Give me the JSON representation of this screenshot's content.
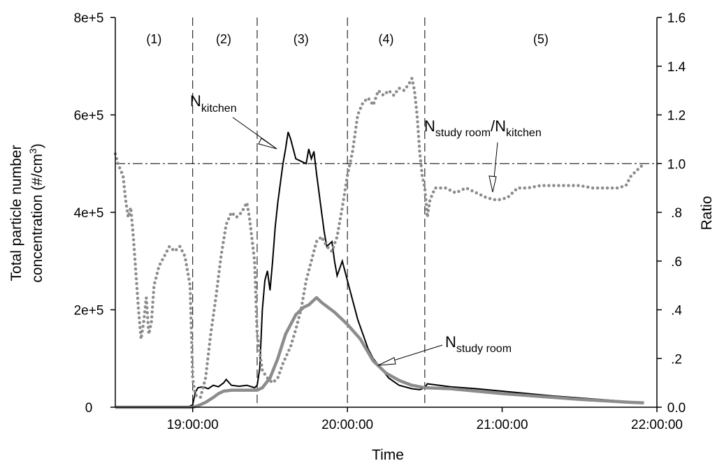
{
  "chart_data": {
    "type": "line",
    "xlabel": "Time",
    "ylabel_left_line1": "Total particle number",
    "ylabel_left_line2": "concentration (#/cm",
    "ylabel_left_sup": "3",
    "ylabel_left_end": ")",
    "ylabel_right": "Ratio",
    "xlim": [
      "18:30:00",
      "22:00:00"
    ],
    "ylim_left": [
      0,
      800000
    ],
    "ylim_right": [
      0.0,
      1.6
    ],
    "x_ticks": [
      "19:00:00",
      "20:00:00",
      "21:00:00",
      "22:00:00"
    ],
    "y_left_ticks": [
      {
        "value": 0,
        "label": "0"
      },
      {
        "value": 200000,
        "label": "2e+5"
      },
      {
        "value": 400000,
        "label": "4e+5"
      },
      {
        "value": 600000,
        "label": "6e+5"
      },
      {
        "value": 800000,
        "label": "8e+5"
      }
    ],
    "y_right_ticks": [
      {
        "value": 0.0,
        "label": "0.0"
      },
      {
        "value": 0.2,
        "label": ".2"
      },
      {
        "value": 0.4,
        "label": ".4"
      },
      {
        "value": 0.6,
        "label": ".6"
      },
      {
        "value": 0.8,
        "label": ".8"
      },
      {
        "value": 1.0,
        "label": "1.0"
      },
      {
        "value": 1.2,
        "label": "1.2"
      },
      {
        "value": 1.4,
        "label": "1.4"
      },
      {
        "value": 1.6,
        "label": "1.6"
      }
    ],
    "region_boundaries": [
      "19:00:00",
      "19:25:00",
      "20:00:00",
      "20:30:00"
    ],
    "regions": [
      {
        "label": "(1)",
        "center": "18:45:00"
      },
      {
        "label": "(2)",
        "center": "19:12:00"
      },
      {
        "label": "(3)",
        "center": "19:42:00"
      },
      {
        "label": "(4)",
        "center": "20:15:00"
      },
      {
        "label": "(5)",
        "center": "21:15:00"
      }
    ],
    "reference_line": {
      "axis": "right",
      "value": 1.0
    },
    "annotations": [
      {
        "main": "N",
        "sub": "kitchen"
      },
      {
        "main": "N",
        "sub": "study room",
        "mid": "/N",
        "sub2": "kitchen"
      },
      {
        "main": "N",
        "sub": "study room"
      }
    ],
    "series": [
      {
        "axis": "left",
        "style": "solid-black",
        "points": [
          [
            "18:30:00",
            0
          ],
          [
            "18:58:00",
            0
          ],
          [
            "19:00:00",
            5000
          ],
          [
            "19:01:00",
            30000
          ],
          [
            "19:02:00",
            40000
          ],
          [
            "19:04:00",
            42000
          ],
          [
            "19:06:00",
            38000
          ],
          [
            "19:08:00",
            45000
          ],
          [
            "19:10:00",
            42000
          ],
          [
            "19:12:00",
            50000
          ],
          [
            "19:13:00",
            57000
          ],
          [
            "19:15:00",
            45000
          ],
          [
            "19:18:00",
            43000
          ],
          [
            "19:21:00",
            45000
          ],
          [
            "19:24:00",
            40000
          ],
          [
            "19:25:00",
            45000
          ],
          [
            "19:26:00",
            80000
          ],
          [
            "19:27:00",
            200000
          ],
          [
            "19:28:00",
            260000
          ],
          [
            "19:29:00",
            280000
          ],
          [
            "19:30:00",
            240000
          ],
          [
            "19:31:00",
            300000
          ],
          [
            "19:32:00",
            370000
          ],
          [
            "19:33:00",
            420000
          ],
          [
            "19:34:00",
            460000
          ],
          [
            "19:35:00",
            500000
          ],
          [
            "19:36:00",
            530000
          ],
          [
            "19:37:00",
            565000
          ],
          [
            "19:38:00",
            550000
          ],
          [
            "19:39:00",
            530000
          ],
          [
            "19:40:00",
            510000
          ],
          [
            "19:42:00",
            505000
          ],
          [
            "19:44:00",
            500000
          ],
          [
            "19:45:00",
            530000
          ],
          [
            "19:46:00",
            510000
          ],
          [
            "19:47:00",
            525000
          ],
          [
            "19:48:00",
            480000
          ],
          [
            "19:50:00",
            400000
          ],
          [
            "19:51:00",
            360000
          ],
          [
            "19:52:00",
            330000
          ],
          [
            "19:54:00",
            340000
          ],
          [
            "19:55:00",
            300000
          ],
          [
            "19:56:00",
            270000
          ],
          [
            "19:58:00",
            300000
          ],
          [
            "20:00:00",
            260000
          ],
          [
            "20:02:00",
            220000
          ],
          [
            "20:04:00",
            180000
          ],
          [
            "20:06:00",
            150000
          ],
          [
            "20:08:00",
            120000
          ],
          [
            "20:10:00",
            100000
          ],
          [
            "20:13:00",
            80000
          ],
          [
            "20:16:00",
            60000
          ],
          [
            "20:20:00",
            45000
          ],
          [
            "20:25:00",
            38000
          ],
          [
            "20:28:00",
            36000
          ],
          [
            "20:30:00",
            40000
          ],
          [
            "20:31:00",
            48000
          ],
          [
            "20:40:00",
            42000
          ],
          [
            "20:50:00",
            38000
          ],
          [
            "21:00:00",
            33000
          ],
          [
            "21:10:00",
            28000
          ],
          [
            "21:20:00",
            23000
          ],
          [
            "21:30:00",
            19000
          ],
          [
            "21:40:00",
            15000
          ],
          [
            "21:50:00",
            11000
          ],
          [
            "21:55:00",
            10000
          ]
        ]
      },
      {
        "axis": "left",
        "style": "solid-gray",
        "points": [
          [
            "18:30:00",
            0
          ],
          [
            "19:00:00",
            0
          ],
          [
            "19:02:00",
            3000
          ],
          [
            "19:05:00",
            10000
          ],
          [
            "19:08:00",
            20000
          ],
          [
            "19:10:00",
            28000
          ],
          [
            "19:12:00",
            33000
          ],
          [
            "19:15:00",
            35000
          ],
          [
            "19:20:00",
            35000
          ],
          [
            "19:25:00",
            35000
          ],
          [
            "19:27:00",
            40000
          ],
          [
            "19:30:00",
            60000
          ],
          [
            "19:33:00",
            100000
          ],
          [
            "19:36:00",
            150000
          ],
          [
            "19:40:00",
            190000
          ],
          [
            "19:43:00",
            205000
          ],
          [
            "19:45:00",
            210000
          ],
          [
            "19:48:00",
            225000
          ],
          [
            "19:50:00",
            215000
          ],
          [
            "19:55:00",
            195000
          ],
          [
            "20:00:00",
            170000
          ],
          [
            "20:05:00",
            140000
          ],
          [
            "20:10:00",
            95000
          ],
          [
            "20:15:00",
            70000
          ],
          [
            "20:20:00",
            55000
          ],
          [
            "20:25:00",
            45000
          ],
          [
            "20:30:00",
            40000
          ],
          [
            "20:40:00",
            38000
          ],
          [
            "20:50:00",
            33000
          ],
          [
            "21:00:00",
            28000
          ],
          [
            "21:10:00",
            24000
          ],
          [
            "21:20:00",
            20000
          ],
          [
            "21:30:00",
            16000
          ],
          [
            "21:40:00",
            13000
          ],
          [
            "21:50:00",
            10000
          ],
          [
            "21:55:00",
            9000
          ]
        ]
      },
      {
        "axis": "right",
        "style": "dotted-gray",
        "points": [
          [
            "18:30:00",
            1.04
          ],
          [
            "18:31:00",
            1.0
          ],
          [
            "18:33:00",
            0.95
          ],
          [
            "18:34:00",
            0.85
          ],
          [
            "18:35:00",
            0.78
          ],
          [
            "18:36:00",
            0.82
          ],
          [
            "18:37:00",
            0.7
          ],
          [
            "18:38:00",
            0.55
          ],
          [
            "18:39:00",
            0.4
          ],
          [
            "18:40:00",
            0.28
          ],
          [
            "18:41:00",
            0.35
          ],
          [
            "18:42:00",
            0.45
          ],
          [
            "18:43:00",
            0.3
          ],
          [
            "18:44:00",
            0.35
          ],
          [
            "18:45:00",
            0.5
          ],
          [
            "18:47:00",
            0.58
          ],
          [
            "18:49:00",
            0.62
          ],
          [
            "18:51:00",
            0.66
          ],
          [
            "18:53:00",
            0.64
          ],
          [
            "18:55:00",
            0.66
          ],
          [
            "18:57:00",
            0.62
          ],
          [
            "18:59:00",
            0.5
          ],
          [
            "19:00:00",
            0.12
          ],
          [
            "19:01:00",
            0.05
          ],
          [
            "19:03:00",
            0.04
          ],
          [
            "19:05:00",
            0.12
          ],
          [
            "19:07:00",
            0.3
          ],
          [
            "19:09:00",
            0.45
          ],
          [
            "19:11:00",
            0.62
          ],
          [
            "19:13:00",
            0.75
          ],
          [
            "19:15:00",
            0.8
          ],
          [
            "19:17:00",
            0.78
          ],
          [
            "19:19:00",
            0.8
          ],
          [
            "19:21:00",
            0.84
          ],
          [
            "19:22:00",
            0.78
          ],
          [
            "19:24:00",
            0.6
          ],
          [
            "19:25:00",
            0.3
          ],
          [
            "19:27:00",
            0.15
          ],
          [
            "19:29:00",
            0.12
          ],
          [
            "19:31:00",
            0.1
          ],
          [
            "19:33:00",
            0.12
          ],
          [
            "19:35:00",
            0.18
          ],
          [
            "19:38:00",
            0.25
          ],
          [
            "19:40:00",
            0.32
          ],
          [
            "19:42:00",
            0.4
          ],
          [
            "19:44:00",
            0.52
          ],
          [
            "19:46:00",
            0.6
          ],
          [
            "19:48:00",
            0.68
          ],
          [
            "19:50:00",
            0.7
          ],
          [
            "19:52:00",
            0.66
          ],
          [
            "19:54:00",
            0.64
          ],
          [
            "19:56:00",
            0.7
          ],
          [
            "19:58:00",
            0.82
          ],
          [
            "20:00:00",
            0.95
          ],
          [
            "20:02:00",
            1.05
          ],
          [
            "20:04:00",
            1.2
          ],
          [
            "20:06:00",
            1.25
          ],
          [
            "20:08:00",
            1.27
          ],
          [
            "20:10:00",
            1.24
          ],
          [
            "20:12:00",
            1.3
          ],
          [
            "20:14:00",
            1.28
          ],
          [
            "20:16:00",
            1.3
          ],
          [
            "20:18:00",
            1.28
          ],
          [
            "20:20:00",
            1.31
          ],
          [
            "20:22:00",
            1.3
          ],
          [
            "20:24:00",
            1.33
          ],
          [
            "20:25:00",
            1.35
          ],
          [
            "20:26:00",
            1.3
          ],
          [
            "20:27:00",
            1.2
          ],
          [
            "20:28:00",
            1.05
          ],
          [
            "20:29:00",
            0.95
          ],
          [
            "20:30:00",
            0.9
          ],
          [
            "20:31:00",
            0.78
          ],
          [
            "20:32:00",
            0.85
          ],
          [
            "20:34:00",
            0.9
          ],
          [
            "20:38:00",
            0.9
          ],
          [
            "20:42:00",
            0.88
          ],
          [
            "20:46:00",
            0.9
          ],
          [
            "20:50:00",
            0.88
          ],
          [
            "20:54:00",
            0.86
          ],
          [
            "20:58:00",
            0.85
          ],
          [
            "21:02:00",
            0.86
          ],
          [
            "21:06:00",
            0.9
          ],
          [
            "21:10:00",
            0.9
          ],
          [
            "21:15:00",
            0.91
          ],
          [
            "21:20:00",
            0.91
          ],
          [
            "21:25:00",
            0.91
          ],
          [
            "21:30:00",
            0.91
          ],
          [
            "21:35:00",
            0.9
          ],
          [
            "21:40:00",
            0.9
          ],
          [
            "21:45:00",
            0.9
          ],
          [
            "21:48:00",
            0.91
          ],
          [
            "21:50:00",
            0.95
          ],
          [
            "21:52:00",
            0.97
          ],
          [
            "21:54:00",
            0.99
          ],
          [
            "21:55:00",
            1.0
          ]
        ]
      }
    ]
  }
}
